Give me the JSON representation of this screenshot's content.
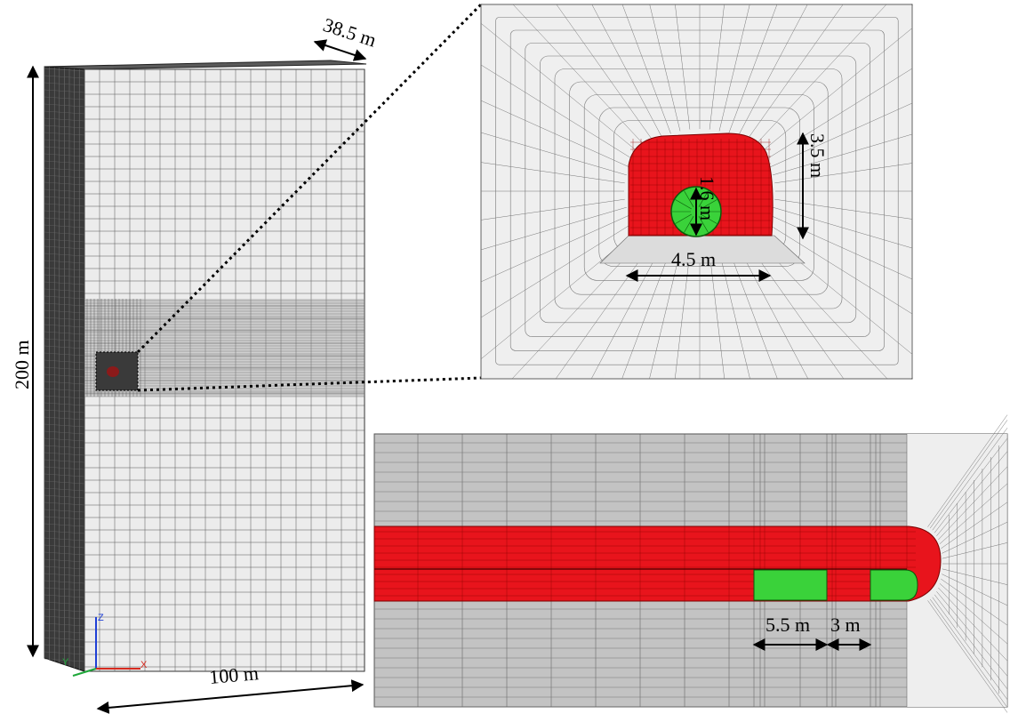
{
  "model": {
    "height_label": "200 m",
    "width_label": "100 m",
    "depth_label": "38.5 m",
    "axis_labels": {
      "x": "X",
      "y": "Y",
      "z": "Z"
    }
  },
  "tunnel_section": {
    "height_label": "3.5 m",
    "width_label": "4.5 m",
    "pipe_label": "1.6 m"
  },
  "longitudinal_section": {
    "left_spacing_label": "5.5 m",
    "right_spacing_label": "3 m"
  },
  "colors": {
    "tunnel_red": "#e8141c",
    "pipe_green": "#3ad23a",
    "mesh_light": "#efefef",
    "mesh_dark": "#2e2e2e",
    "longitudinal_gray": "#c3c3c3"
  }
}
